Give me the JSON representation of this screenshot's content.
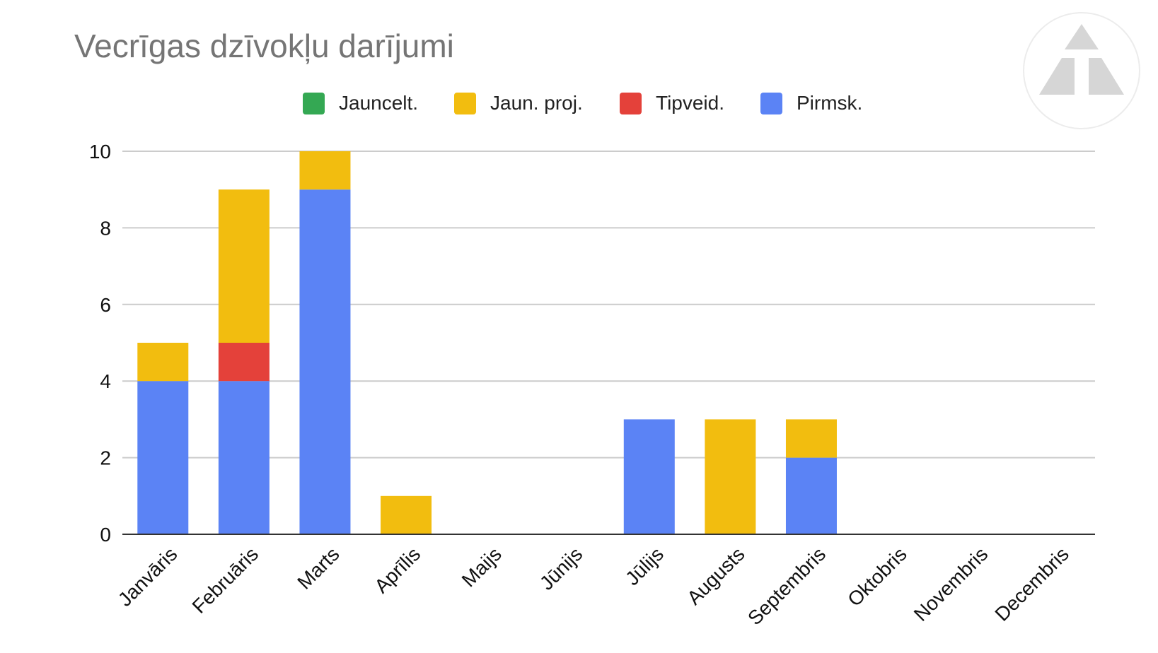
{
  "title": "Vecrīgas dzīvokļu darījumi",
  "logo": "triangle-logo",
  "chart_data": {
    "type": "bar",
    "stacked": true,
    "title": "Vecrīgas dzīvokļu darījumi",
    "xlabel": "",
    "ylabel": "",
    "ylim": [
      0,
      10
    ],
    "yticks": [
      "0",
      "2",
      "4",
      "6",
      "8",
      "10"
    ],
    "grid": true,
    "legend_position": "top",
    "categories": [
      "Janvāris",
      "Februāris",
      "Marts",
      "Aprīlis",
      "Maijs",
      "Jūnijs",
      "Jūlijs",
      "Augusts",
      "Septembris",
      "Oktobris",
      "Novembris",
      "Decembris"
    ],
    "series": [
      {
        "name": "Pirmsk.",
        "color": "#5b83f5",
        "values": [
          4,
          4,
          9,
          0,
          0,
          0,
          3,
          0,
          2,
          0,
          0,
          0
        ]
      },
      {
        "name": "Tipveid.",
        "color": "#e4413a",
        "values": [
          0,
          1,
          0,
          0,
          0,
          0,
          0,
          0,
          0,
          0,
          0,
          0
        ]
      },
      {
        "name": "Jaun. proj.",
        "color": "#f2bd0f",
        "values": [
          1,
          4,
          1,
          1,
          0,
          0,
          0,
          3,
          1,
          0,
          0,
          0
        ]
      },
      {
        "name": "Jauncelt.",
        "color": "#34a853",
        "values": [
          0,
          0,
          0,
          0,
          0,
          0,
          0,
          0,
          0,
          0,
          0,
          0
        ]
      }
    ],
    "legend_order": [
      "Jauncelt.",
      "Jaun. proj.",
      "Tipveid.",
      "Pirmsk."
    ]
  }
}
